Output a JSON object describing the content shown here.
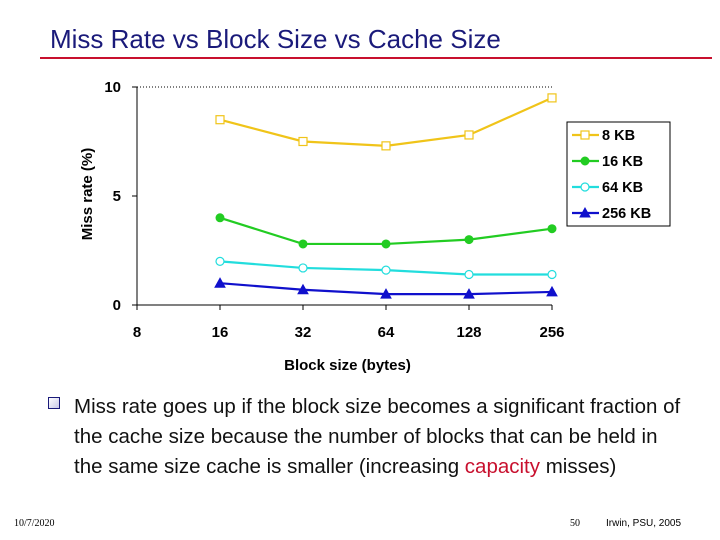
{
  "slide": {
    "title": "Miss Rate vs Block Size vs Cache Size",
    "bullet_before": "Miss rate goes up if the block size becomes a significant fraction of the cache size because the number of blocks that can be held in the same size cache is smaller (increasing ",
    "bullet_highlight": "capacity",
    "bullet_after": " misses)",
    "footer_date": "10/7/2020",
    "footer_page": "50",
    "footer_credit": "Irwin, PSU, 2005"
  },
  "colors": {
    "title": "#1a1a7a",
    "rule": "#c8102e",
    "highlight": "#c8102e"
  },
  "chart_data": {
    "type": "line",
    "title": "",
    "xlabel": "Block size (bytes)",
    "ylabel": "Miss rate (%)",
    "categories": [
      "8",
      "16",
      "32",
      "64",
      "128",
      "256"
    ],
    "ylim": [
      0,
      10
    ],
    "yticks": [
      "0",
      "5",
      "10"
    ],
    "series": [
      {
        "name": "8 KB",
        "color": "#f0c419",
        "marker": "square-open",
        "values": [
          null,
          8.5,
          7.5,
          7.3,
          7.8,
          9.5
        ]
      },
      {
        "name": "16 KB",
        "color": "#22cc22",
        "marker": "circle",
        "values": [
          null,
          4.0,
          2.8,
          2.8,
          3.0,
          3.5
        ]
      },
      {
        "name": "64 KB",
        "color": "#22dddd",
        "marker": "circle-open",
        "values": [
          null,
          2.0,
          1.7,
          1.6,
          1.4,
          1.4
        ]
      },
      {
        "name": "256 KB",
        "color": "#1010cc",
        "marker": "triangle",
        "values": [
          null,
          1.0,
          0.7,
          0.5,
          0.5,
          0.6
        ]
      }
    ],
    "legend": "right"
  }
}
